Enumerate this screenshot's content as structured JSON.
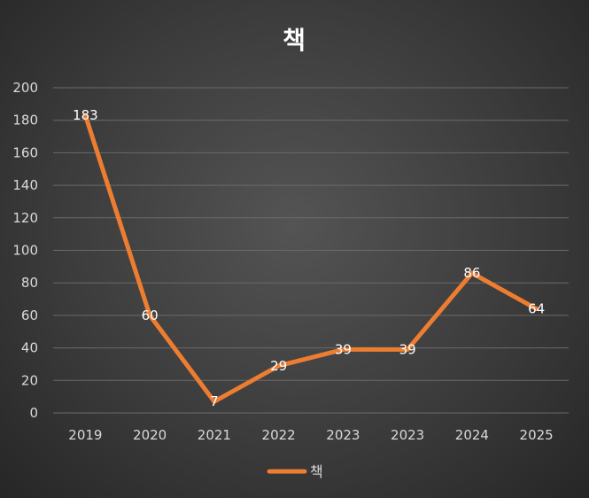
{
  "chart_data": {
    "type": "line",
    "title": "책",
    "categories": [
      "2019",
      "2020",
      "2021",
      "2022",
      "2023",
      "2023",
      "2024",
      "2025"
    ],
    "series": [
      {
        "name": "책",
        "values": [
          183,
          60,
          7,
          29,
          39,
          39,
          86,
          64
        ],
        "color": "#ED7D31"
      }
    ],
    "ylim": [
      0,
      200
    ],
    "yticks": [
      0,
      20,
      40,
      60,
      80,
      100,
      120,
      140,
      160,
      180,
      200
    ],
    "grid": true,
    "legend": "bottom",
    "data_labels": true
  }
}
